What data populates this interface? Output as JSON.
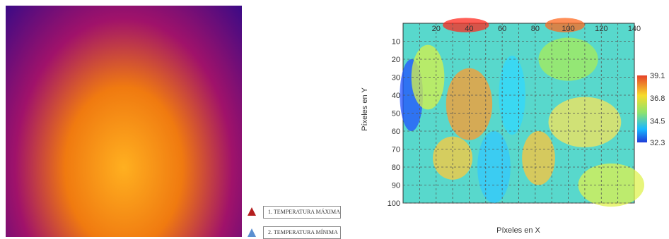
{
  "legend": {
    "max_label": "1. TEMPERATURA MÁXIMA",
    "min_label": "2. TEMPERATURA MÍNIMA",
    "max_color": "#b41e1e",
    "min_color": "#5b8fd0"
  },
  "chart_data": {
    "type": "heatmap",
    "title": "",
    "xlabel": "Píxeles en X",
    "ylabel": "Píxeles en Y",
    "x_ticks": [
      20,
      40,
      60,
      80,
      100,
      120,
      140
    ],
    "y_ticks": [
      10,
      20,
      30,
      40,
      50,
      60,
      70,
      80,
      90,
      100
    ],
    "xlim": [
      0,
      140
    ],
    "ylim": [
      0,
      100
    ],
    "colorbar": {
      "ticks": [
        39.1,
        36.8,
        34.5,
        32.3
      ],
      "range": [
        32.3,
        39.1
      ]
    },
    "grid": true
  }
}
